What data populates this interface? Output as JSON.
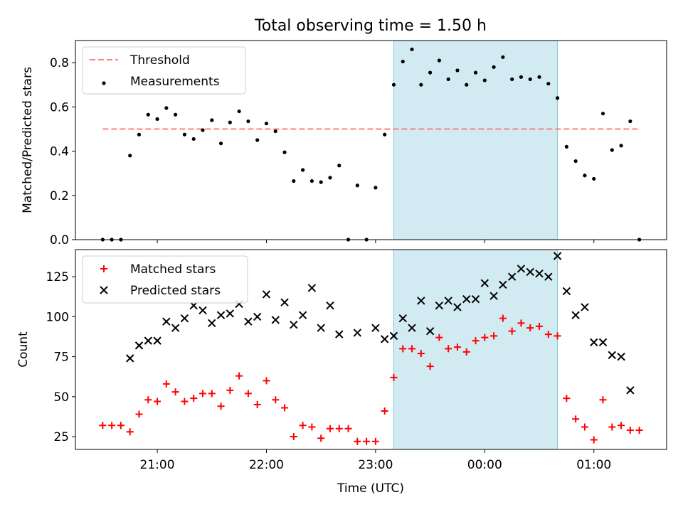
{
  "title": "Total observing time = 1.50 h",
  "xlabel": "Time (UTC)",
  "x_ticks": [
    "21:00",
    "22:00",
    "23:00",
    "00:00",
    "01:00"
  ],
  "colors": {
    "threshold": "#ff7f7f",
    "measurements": "#000000",
    "matched": "#ff0000",
    "predicted": "#000000",
    "highlight_fill": "#add8e6",
    "highlight_edge": "#7fc8cc"
  },
  "chart_data": [
    {
      "type": "scatter",
      "ylabel": "Matched/Predicted stars",
      "ylim": [
        0,
        0.9
      ],
      "yticks": [
        "0.0",
        "0.2",
        "0.4",
        "0.6",
        "0.8"
      ],
      "xlim": [
        "20:15",
        "01:40"
      ],
      "highlight": {
        "start": "23:10",
        "end": "00:40"
      },
      "threshold": {
        "value": 0.5,
        "start": "20:30",
        "end": "01:25",
        "label": "Threshold"
      },
      "legend": {
        "placement": "upper-left",
        "entries": [
          "Threshold",
          "Measurements"
        ]
      },
      "series": [
        {
          "name": "Measurements",
          "points": [
            [
              "20:30",
              0.0
            ],
            [
              "20:35",
              0.0
            ],
            [
              "20:40",
              0.0
            ],
            [
              "20:45",
              0.38
            ],
            [
              "20:50",
              0.475
            ],
            [
              "20:55",
              0.565
            ],
            [
              "21:00",
              0.545
            ],
            [
              "21:05",
              0.595
            ],
            [
              "21:10",
              0.565
            ],
            [
              "21:15",
              0.475
            ],
            [
              "21:20",
              0.455
            ],
            [
              "21:25",
              0.495
            ],
            [
              "21:30",
              0.54
            ],
            [
              "21:35",
              0.435
            ],
            [
              "21:40",
              0.53
            ],
            [
              "21:45",
              0.58
            ],
            [
              "21:50",
              0.535
            ],
            [
              "21:55",
              0.45
            ],
            [
              "22:00",
              0.525
            ],
            [
              "22:05",
              0.49
            ],
            [
              "22:10",
              0.395
            ],
            [
              "22:15",
              0.265
            ],
            [
              "22:20",
              0.315
            ],
            [
              "22:25",
              0.265
            ],
            [
              "22:30",
              0.26
            ],
            [
              "22:35",
              0.28
            ],
            [
              "22:40",
              0.335
            ],
            [
              "22:45",
              0.0
            ],
            [
              "22:50",
              0.245
            ],
            [
              "22:55",
              0.0
            ],
            [
              "23:00",
              0.235
            ],
            [
              "23:05",
              0.475
            ],
            [
              "23:10",
              0.7
            ],
            [
              "23:15",
              0.805
            ],
            [
              "23:20",
              0.86
            ],
            [
              "23:25",
              0.7
            ],
            [
              "23:30",
              0.755
            ],
            [
              "23:35",
              0.81
            ],
            [
              "23:40",
              0.725
            ],
            [
              "23:45",
              0.765
            ],
            [
              "23:50",
              0.7
            ],
            [
              "23:55",
              0.755
            ],
            [
              "00:00",
              0.72
            ],
            [
              "00:05",
              0.78
            ],
            [
              "00:10",
              0.825
            ],
            [
              "00:15",
              0.725
            ],
            [
              "00:20",
              0.735
            ],
            [
              "00:25",
              0.725
            ],
            [
              "00:30",
              0.735
            ],
            [
              "00:35",
              0.705
            ],
            [
              "00:40",
              0.64
            ],
            [
              "00:45",
              0.42
            ],
            [
              "00:50",
              0.355
            ],
            [
              "00:55",
              0.29
            ],
            [
              "01:00",
              0.275
            ],
            [
              "01:05",
              0.57
            ],
            [
              "01:10",
              0.405
            ],
            [
              "01:15",
              0.425
            ],
            [
              "01:20",
              0.535
            ],
            [
              "01:25",
              0.0
            ]
          ]
        }
      ]
    },
    {
      "type": "scatter",
      "ylabel": "Count",
      "ylim": [
        17,
        142
      ],
      "yticks": [
        "25",
        "50",
        "75",
        "100",
        "125"
      ],
      "xlim": [
        "20:15",
        "01:40"
      ],
      "highlight": {
        "start": "23:10",
        "end": "00:40"
      },
      "legend": {
        "placement": "upper-left",
        "entries": [
          "Matched stars",
          "Predicted stars"
        ]
      },
      "series": [
        {
          "name": "Matched stars",
          "points": [
            [
              "20:30",
              32
            ],
            [
              "20:35",
              32
            ],
            [
              "20:40",
              32
            ],
            [
              "20:45",
              28
            ],
            [
              "20:50",
              39
            ],
            [
              "20:55",
              48
            ],
            [
              "21:00",
              47
            ],
            [
              "21:05",
              58
            ],
            [
              "21:10",
              53
            ],
            [
              "21:15",
              47
            ],
            [
              "21:20",
              49
            ],
            [
              "21:25",
              52
            ],
            [
              "21:30",
              52
            ],
            [
              "21:35",
              44
            ],
            [
              "21:40",
              54
            ],
            [
              "21:45",
              63
            ],
            [
              "21:50",
              52
            ],
            [
              "21:55",
              45
            ],
            [
              "22:00",
              60
            ],
            [
              "22:05",
              48
            ],
            [
              "22:10",
              43
            ],
            [
              "22:15",
              25
            ],
            [
              "22:20",
              32
            ],
            [
              "22:25",
              31
            ],
            [
              "22:30",
              24
            ],
            [
              "22:35",
              30
            ],
            [
              "22:40",
              30
            ],
            [
              "22:45",
              30
            ],
            [
              "22:50",
              22
            ],
            [
              "22:55",
              22
            ],
            [
              "23:00",
              22
            ],
            [
              "23:05",
              41
            ],
            [
              "23:10",
              62
            ],
            [
              "23:15",
              80
            ],
            [
              "23:20",
              80
            ],
            [
              "23:25",
              77
            ],
            [
              "23:30",
              69
            ],
            [
              "23:35",
              87
            ],
            [
              "23:40",
              80
            ],
            [
              "23:45",
              81
            ],
            [
              "23:50",
              78
            ],
            [
              "23:55",
              85
            ],
            [
              "00:00",
              87
            ],
            [
              "00:05",
              88
            ],
            [
              "00:10",
              99
            ],
            [
              "00:15",
              91
            ],
            [
              "00:20",
              96
            ],
            [
              "00:25",
              93
            ],
            [
              "00:30",
              94
            ],
            [
              "00:35",
              89
            ],
            [
              "00:40",
              88
            ],
            [
              "00:45",
              49
            ],
            [
              "00:50",
              36
            ],
            [
              "00:55",
              31
            ],
            [
              "01:00",
              23
            ],
            [
              "01:05",
              48
            ],
            [
              "01:10",
              31
            ],
            [
              "01:15",
              32
            ],
            [
              "01:20",
              29
            ],
            [
              "01:25",
              29
            ]
          ]
        },
        {
          "name": "Predicted stars",
          "points": [
            [
              "20:45",
              74
            ],
            [
              "20:50",
              82
            ],
            [
              "20:55",
              85
            ],
            [
              "21:00",
              85
            ],
            [
              "21:05",
              97
            ],
            [
              "21:10",
              93
            ],
            [
              "21:15",
              99
            ],
            [
              "21:20",
              107
            ],
            [
              "21:25",
              104
            ],
            [
              "21:30",
              96
            ],
            [
              "21:35",
              101
            ],
            [
              "21:40",
              102
            ],
            [
              "21:45",
              108
            ],
            [
              "21:50",
              97
            ],
            [
              "21:55",
              100
            ],
            [
              "22:00",
              114
            ],
            [
              "22:05",
              98
            ],
            [
              "22:10",
              109
            ],
            [
              "22:15",
              95
            ],
            [
              "22:20",
              101
            ],
            [
              "22:25",
              118
            ],
            [
              "22:30",
              93
            ],
            [
              "22:35",
              107
            ],
            [
              "22:40",
              89
            ],
            [
              "22:50",
              90
            ],
            [
              "23:00",
              93
            ],
            [
              "23:05",
              86
            ],
            [
              "23:10",
              88
            ],
            [
              "23:15",
              99
            ],
            [
              "23:20",
              93
            ],
            [
              "23:25",
              110
            ],
            [
              "23:30",
              91
            ],
            [
              "23:35",
              107
            ],
            [
              "23:40",
              110
            ],
            [
              "23:45",
              106
            ],
            [
              "23:50",
              111
            ],
            [
              "23:55",
              111
            ],
            [
              "00:00",
              121
            ],
            [
              "00:05",
              113
            ],
            [
              "00:10",
              120
            ],
            [
              "00:15",
              125
            ],
            [
              "00:20",
              130
            ],
            [
              "00:25",
              128
            ],
            [
              "00:30",
              127
            ],
            [
              "00:35",
              125
            ],
            [
              "00:40",
              138
            ],
            [
              "00:45",
              116
            ],
            [
              "00:50",
              101
            ],
            [
              "00:55",
              106
            ],
            [
              "01:00",
              84
            ],
            [
              "01:05",
              84
            ],
            [
              "01:10",
              76
            ],
            [
              "01:15",
              75
            ],
            [
              "01:20",
              54
            ]
          ]
        }
      ]
    }
  ]
}
